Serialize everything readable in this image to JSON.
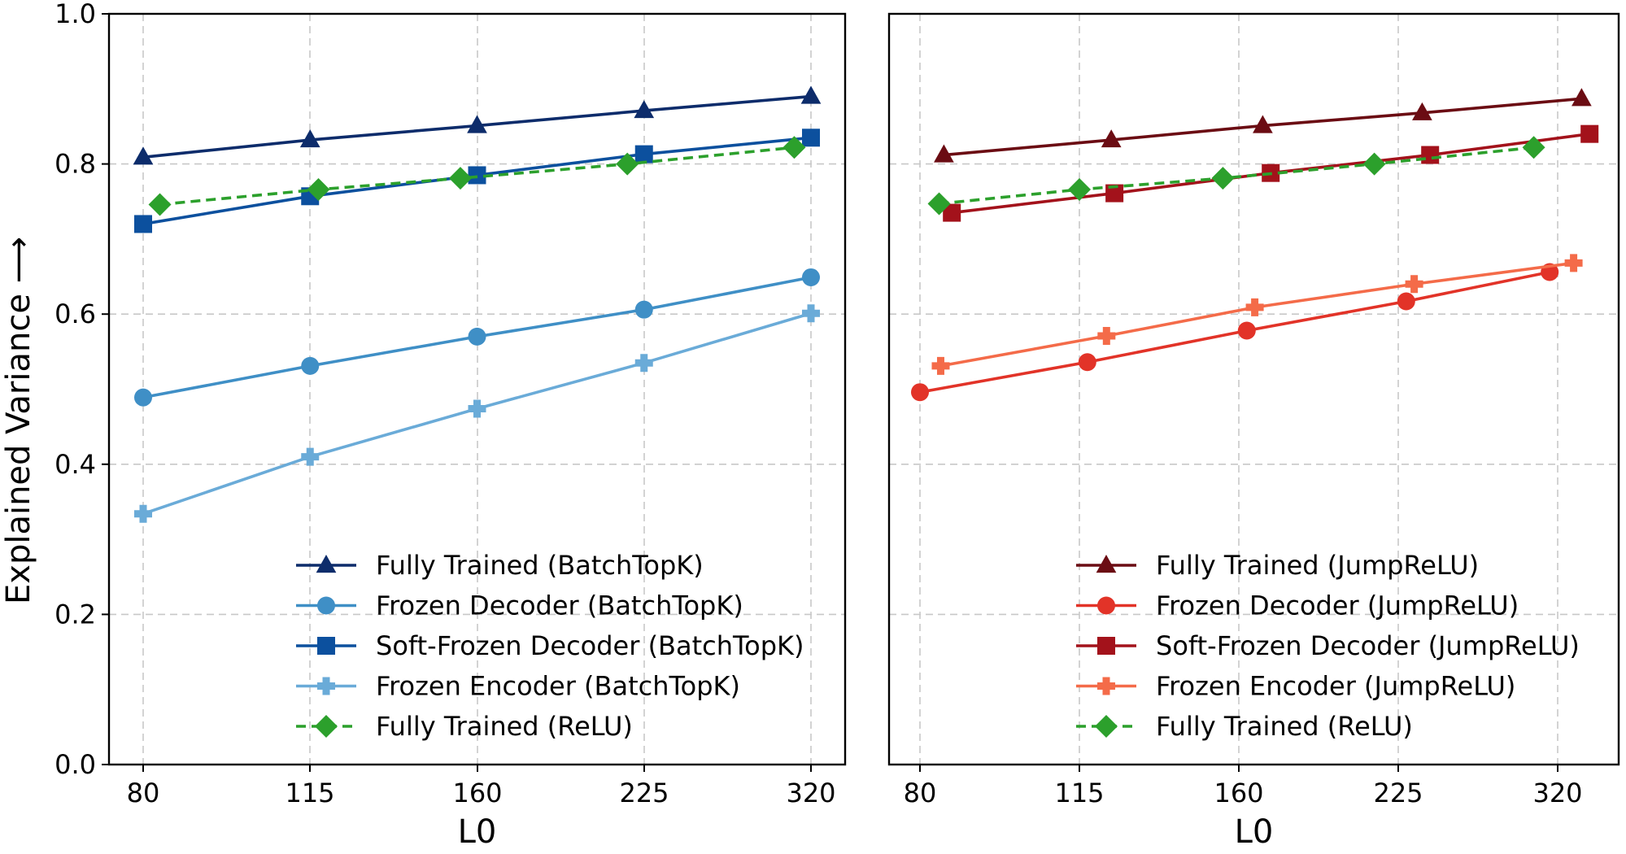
{
  "y_axis_label": "Explained Variance ⟶",
  "chart_data": [
    {
      "type": "line",
      "name": "batchtopk-panel",
      "xlabel": "L0",
      "ylabel": "Explained Variance ⟶",
      "x_ticks": [
        "80",
        "115",
        "160",
        "225",
        "320"
      ],
      "y_ticks": [
        "0.0",
        "0.2",
        "0.4",
        "0.6",
        "0.8",
        "1.0"
      ],
      "xlim": [
        -0.1,
        4.2
      ],
      "ylim": [
        0.0,
        1.0
      ],
      "grid": true,
      "legend_position": "lower-right",
      "series": [
        {
          "name": "Fully Trained (BatchTopK)",
          "color": "#0d2c6b",
          "marker": "triangle",
          "linestyle": "solid",
          "x": [
            0,
            1,
            2,
            3,
            4
          ],
          "values": [
            0.809,
            0.832,
            0.851,
            0.871,
            0.89
          ]
        },
        {
          "name": "Frozen Decoder (BatchTopK)",
          "color": "#3f8fc6",
          "marker": "circle",
          "linestyle": "solid",
          "x": [
            0,
            1,
            2,
            3,
            4
          ],
          "values": [
            0.489,
            0.531,
            0.57,
            0.606,
            0.649
          ]
        },
        {
          "name": "Soft-Frozen Decoder (BatchTopK)",
          "color": "#0c509e",
          "marker": "square",
          "linestyle": "solid",
          "x": [
            0,
            1,
            2,
            3,
            4
          ],
          "values": [
            0.72,
            0.757,
            0.785,
            0.813,
            0.835
          ]
        },
        {
          "name": "Frozen Encoder (BatchTopK)",
          "color": "#6aabd8",
          "marker": "plus",
          "linestyle": "solid",
          "x": [
            0,
            1,
            2,
            3,
            4
          ],
          "values": [
            0.334,
            0.41,
            0.474,
            0.535,
            0.601
          ]
        },
        {
          "name": "Fully Trained (ReLU)",
          "color": "#2ca02c",
          "marker": "diamond",
          "linestyle": "dashed",
          "x": [
            0.1,
            1.05,
            1.9,
            2.9,
            3.9
          ],
          "values": [
            0.746,
            0.766,
            0.781,
            0.8,
            0.822
          ]
        }
      ]
    },
    {
      "type": "line",
      "name": "jumprelu-panel",
      "xlabel": "L0",
      "ylabel": "",
      "x_ticks": [
        "80",
        "115",
        "160",
        "225",
        "320"
      ],
      "y_ticks": [],
      "xlim": [
        -0.1,
        4.2
      ],
      "ylim": [
        0.0,
        1.0
      ],
      "grid": true,
      "legend_position": "lower-right",
      "series": [
        {
          "name": "Fully Trained (JumpReLU)",
          "color": "#6b0c13",
          "marker": "triangle",
          "linestyle": "solid",
          "x": [
            0.15,
            1.2,
            2.15,
            3.15,
            4.15
          ],
          "values": [
            0.812,
            0.832,
            0.851,
            0.868,
            0.887
          ]
        },
        {
          "name": "Frozen Decoder (JumpReLU)",
          "color": "#e23328",
          "marker": "circle",
          "linestyle": "solid",
          "x": [
            0,
            1.05,
            2.05,
            3.05,
            3.95
          ],
          "values": [
            0.496,
            0.536,
            0.578,
            0.617,
            0.656
          ]
        },
        {
          "name": "Soft-Frozen Decoder (JumpReLU)",
          "color": "#a3121b",
          "marker": "square",
          "linestyle": "solid",
          "x": [
            0.2,
            1.22,
            2.2,
            3.2,
            4.2
          ],
          "values": [
            0.735,
            0.761,
            0.788,
            0.812,
            0.84
          ]
        },
        {
          "name": "Frozen Encoder (JumpReLU)",
          "color": "#f46b49",
          "marker": "plus",
          "linestyle": "solid",
          "x": [
            0.13,
            1.17,
            2.1,
            3.1,
            4.1
          ],
          "values": [
            0.531,
            0.571,
            0.609,
            0.64,
            0.668
          ]
        },
        {
          "name": "Fully Trained (ReLU)",
          "color": "#2ca02c",
          "marker": "diamond",
          "linestyle": "dashed",
          "x": [
            0.12,
            1.0,
            1.9,
            2.85,
            3.85
          ],
          "values": [
            0.747,
            0.766,
            0.781,
            0.8,
            0.822
          ]
        }
      ]
    }
  ]
}
